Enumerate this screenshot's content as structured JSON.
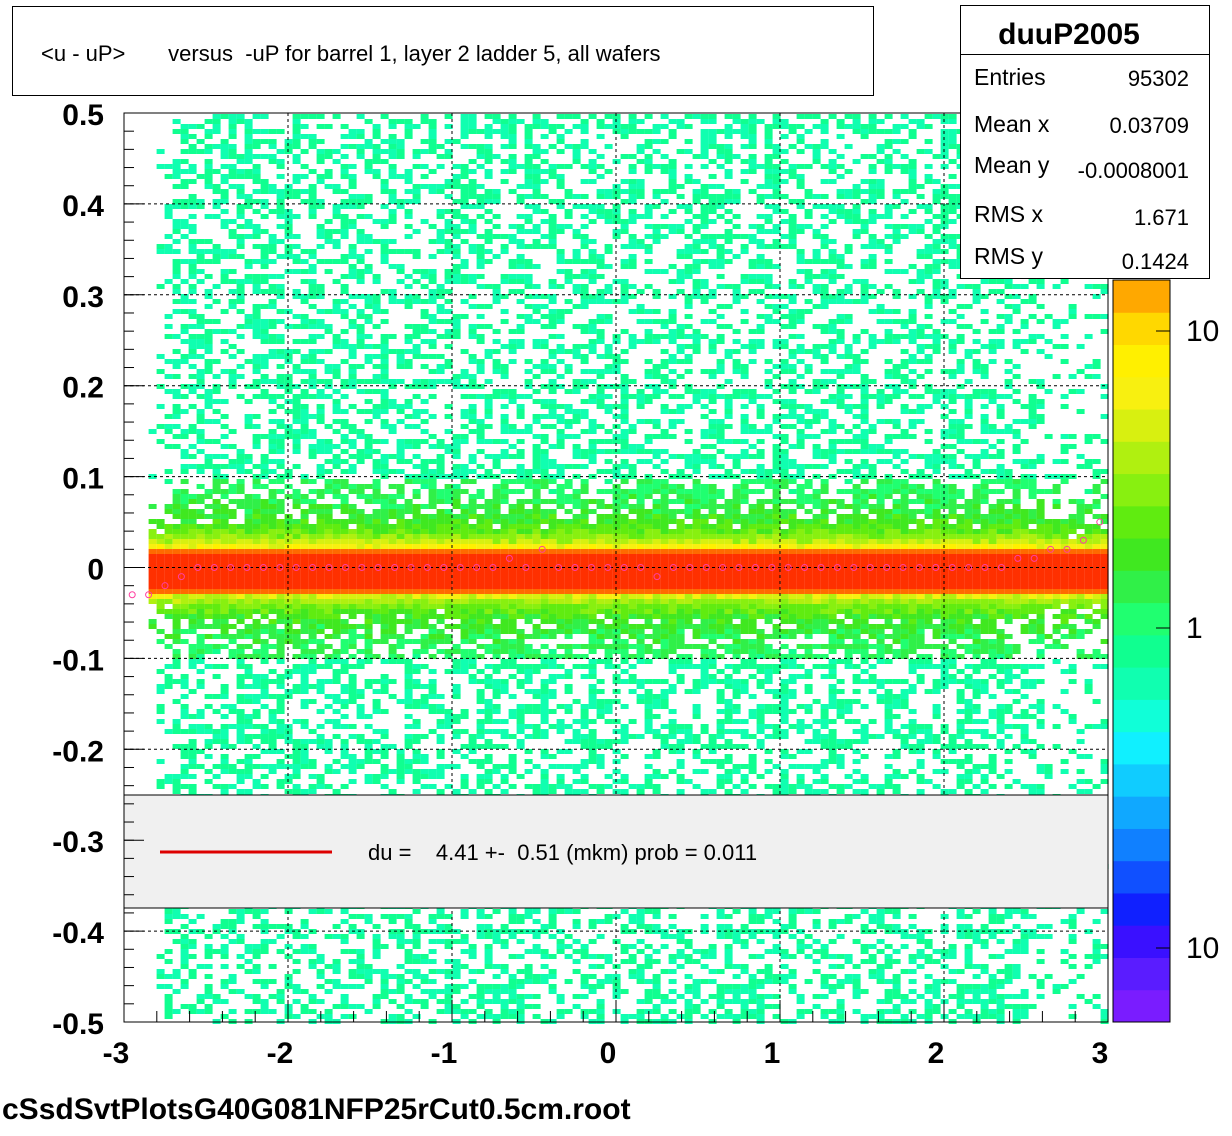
{
  "title": "<u - uP>       versus  -uP for barrel 1, layer 2 ladder 5, all wafers",
  "stats": {
    "name": "duuP2005",
    "rows": [
      {
        "label": "Entries",
        "value": "95302"
      },
      {
        "label": "Mean x",
        "value": "0.03709"
      },
      {
        "label": "Mean y",
        "value": "-0.0008001"
      },
      {
        "label": "RMS x",
        "value": "1.671"
      },
      {
        "label": "RMS y",
        "value": "0.1424"
      }
    ]
  },
  "legend": {
    "text": "du =    4.41 +-  0.51 (mkm) prob = 0.011",
    "line_color": "#dd0000"
  },
  "footer": "cSsdSvtPlotsG40G081NFP25rCut0.5cm.root",
  "colors": {
    "grid": "#000000",
    "palette": [
      "#7a1cff",
      "#5a1cff",
      "#3a10ff",
      "#1020ff",
      "#1050ff",
      "#1080ff",
      "#10a8ff",
      "#10ccff",
      "#10f0ff",
      "#10ffd8",
      "#10ffb0",
      "#10ff90",
      "#20ff70",
      "#30f048",
      "#40e820",
      "#60ec10",
      "#88f010",
      "#b0f010",
      "#d8f010",
      "#f8f010",
      "#fff000",
      "#ffd800",
      "#ffa800"
    ],
    "profile_marker": "#ff3fa0"
  },
  "chart_data": {
    "type": "heatmap",
    "title": "<u - uP>       versus  -uP for barrel 1, layer 2 ladder 5, all wafers",
    "x_ticks": [
      "-3",
      "-2",
      "-1",
      "0",
      "1",
      "2",
      "3"
    ],
    "y_ticks": [
      "0.5",
      "0.4",
      "0.3",
      "0.2",
      "0.1",
      "0",
      "-0.1",
      "-0.2",
      "-0.3",
      "-0.4",
      "-0.5"
    ],
    "xlim": [
      -3,
      3
    ],
    "ylim": [
      -0.5,
      0.5
    ],
    "z_scale": "log",
    "z_tick_labels": [
      "10",
      "1",
      "10"
    ],
    "grid": true,
    "band": {
      "center": 0.0,
      "core_halfwidth": 0.01,
      "rms_y": 0.1424
    },
    "profile": {
      "x": [
        -2.95,
        -2.85,
        -2.75,
        -2.65,
        -2.55,
        -2.45,
        -2.35,
        -2.25,
        -2.15,
        -2.05,
        -1.95,
        -1.85,
        -1.75,
        -1.65,
        -1.55,
        -1.45,
        -1.35,
        -1.25,
        -1.15,
        -1.05,
        -0.95,
        -0.85,
        -0.75,
        -0.65,
        -0.55,
        -0.45,
        -0.35,
        -0.25,
        -0.15,
        -0.05,
        0.05,
        0.15,
        0.25,
        0.35,
        0.45,
        0.55,
        0.65,
        0.75,
        0.85,
        0.95,
        1.05,
        1.15,
        1.25,
        1.35,
        1.45,
        1.55,
        1.65,
        1.75,
        1.85,
        1.95,
        2.05,
        2.15,
        2.25,
        2.35,
        2.45,
        2.55,
        2.65,
        2.75,
        2.85,
        2.95
      ],
      "y": [
        -0.03,
        -0.03,
        -0.02,
        -0.01,
        0.0,
        0.0,
        0.0,
        0.0,
        0.0,
        0.0,
        0.0,
        0.0,
        0.0,
        0.0,
        0.0,
        0.0,
        0.0,
        0.0,
        0.0,
        0.0,
        0.0,
        0.0,
        0.0,
        0.01,
        0.0,
        0.02,
        0.0,
        0.0,
        0.0,
        0.0,
        0.0,
        0.0,
        -0.01,
        0.0,
        0.0,
        0.0,
        0.0,
        0.0,
        0.0,
        0.0,
        0.0,
        0.0,
        0.0,
        0.0,
        0.0,
        0.0,
        0.0,
        0.0,
        0.0,
        0.0,
        0.0,
        0.0,
        0.0,
        0.0,
        0.01,
        0.01,
        0.02,
        0.02,
        0.03,
        0.05
      ]
    }
  }
}
